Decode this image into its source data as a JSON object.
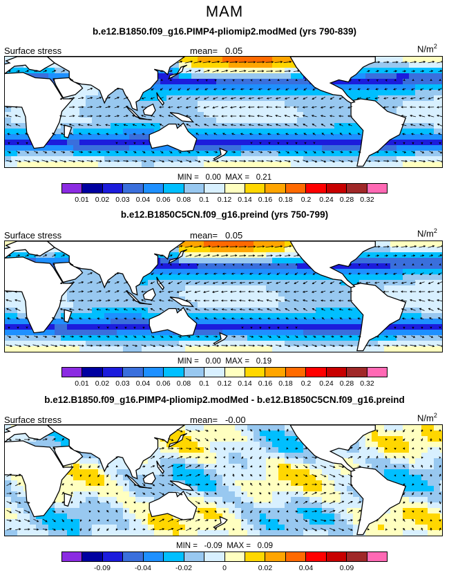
{
  "season": "MAM",
  "colors": [
    "#8b2be2",
    "#0000a0",
    "#1c1cdc",
    "#3a6fdc",
    "#1e90ff",
    "#00bfff",
    "#98c8f0",
    "#d8f0ff",
    "#ffffc0",
    "#ffd700",
    "#ffa500",
    "#ff6a00",
    "#ff0000",
    "#c80000",
    "#a02828",
    "#ff69b4"
  ],
  "land_color": "#ffffff",
  "panels": [
    {
      "title": "b.e12.B1850.f09_g16.PIMP4-pliomip2.modMed (yrs 790-839)",
      "variable": "Surface stress",
      "mean_label": "mean=",
      "mean_value": "0.05",
      "units": "N/m",
      "units_exp": "2",
      "min_label": "MIN =",
      "min_value": "0.00",
      "max_label": "MAX =",
      "max_value": "0.21",
      "colorbar_labels": [
        "0.01",
        "0.02",
        "0.03",
        "0.04",
        "0.06",
        "0.08",
        "0.1",
        "0.12",
        "0.14",
        "0.16",
        "0.18",
        "0.2",
        "0.24",
        "0.28",
        "0.32"
      ],
      "field": "magnitude"
    },
    {
      "title": "b.e12.B1850C5CN.f09_g16.preind (yrs 750-799)",
      "variable": "Surface stress",
      "mean_label": "mean=",
      "mean_value": "0.05",
      "units": "N/m",
      "units_exp": "2",
      "min_label": "MIN =",
      "min_value": "0.00",
      "max_label": "MAX =",
      "max_value": "0.19",
      "colorbar_labels": [
        "0.01",
        "0.02",
        "0.03",
        "0.04",
        "0.06",
        "0.08",
        "0.1",
        "0.12",
        "0.14",
        "0.16",
        "0.18",
        "0.2",
        "0.24",
        "0.28",
        "0.32"
      ],
      "field": "magnitude"
    },
    {
      "title": "b.e12.B1850.f09_g16.PIMP4-pliomip2.modMed - b.e12.B1850C5CN.f09_g16.preind",
      "variable": "Surface stress",
      "mean_label": "mean=",
      "mean_value": "-0.00",
      "units": "N/m",
      "units_exp": "2",
      "min_label": "MIN =",
      "min_value": "-0.09",
      "max_label": "MAX =",
      "max_value": "0.09",
      "colorbar_labels": [
        "-0.09",
        "-0.04",
        "-0.02",
        "0",
        "0.02",
        "0.04",
        "0.09"
      ],
      "field": "difference"
    }
  ]
}
